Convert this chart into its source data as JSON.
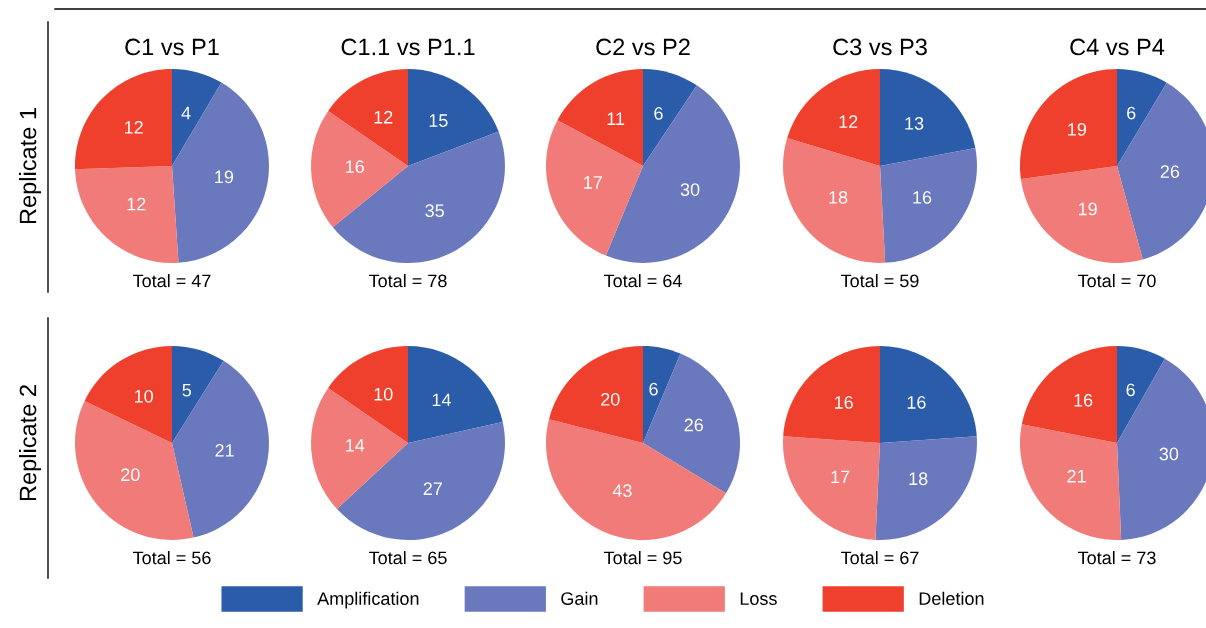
{
  "chart_data": [
    {
      "type": "pie",
      "title": "C1 vs P1",
      "ylabel": "Replicate 1",
      "categories": [
        "Amplification",
        "Gain",
        "Loss",
        "Deletion"
      ],
      "values": [
        4,
        19,
        12,
        12
      ],
      "colors": [
        "#2a5caa",
        "#6a78be",
        "#f07b78",
        "#ef402d"
      ],
      "data_labels": true,
      "annotations": [
        "Total = 47"
      ],
      "legend": "bottom"
    },
    {
      "type": "pie",
      "title": "C1.1 vs P1.1",
      "categories": [
        null,
        null,
        null,
        null
      ],
      "values": [
        15,
        35,
        16,
        12
      ],
      "colors": [
        "#2a5caa",
        "#6a78be",
        "#f07b78",
        "#ef402d"
      ],
      "data_labels": true,
      "annotations": [
        "Total = 78"
      ]
    },
    {
      "type": "pie",
      "title": "C2 vs P2",
      "categories": [
        null,
        null,
        null,
        null
      ],
      "values": [
        6,
        30,
        17,
        11
      ],
      "colors": [
        "#2a5caa",
        "#6a78be",
        "#f07b78",
        "#ef402d"
      ],
      "data_labels": true,
      "annotations": [
        "Total = 64"
      ]
    },
    {
      "type": "pie",
      "title": "C3 vs P3",
      "categories": [
        null,
        null,
        null,
        null
      ],
      "values": [
        13,
        16,
        18,
        12
      ],
      "colors": [
        "#2a5caa",
        "#6a78be",
        "#f07b78",
        "#ef402d"
      ],
      "data_labels": true,
      "annotations": [
        "Total = 59"
      ]
    },
    {
      "type": "pie",
      "title": "C4 vs P4",
      "categories": [
        null,
        null,
        null,
        null
      ],
      "values": [
        6,
        26,
        19,
        19
      ],
      "colors": [
        "#2a5caa",
        "#6a78be",
        "#f07b78",
        "#ef402d"
      ],
      "data_labels": true,
      "annotations": [
        "Total = 70"
      ]
    },
    {
      "type": "pie",
      "ylabel": "Replicate 2",
      "categories": [
        null,
        null,
        null,
        null
      ],
      "values": [
        5,
        21,
        20,
        10
      ],
      "colors": [
        "#2a5caa",
        "#6a78be",
        "#f07b78",
        "#ef402d"
      ],
      "data_labels": true,
      "annotations": [
        "Total = 56"
      ]
    },
    {
      "type": "pie",
      "categories": [
        null,
        null,
        null,
        null
      ],
      "values": [
        14,
        27,
        14,
        10
      ],
      "colors": [
        "#2a5caa",
        "#6a78be",
        "#f07b78",
        "#ef402d"
      ],
      "data_labels": true,
      "annotations": [
        "Total = 65"
      ]
    },
    {
      "type": "pie",
      "categories": [
        null,
        null,
        null,
        null
      ],
      "values": [
        6,
        26,
        43,
        20
      ],
      "colors": [
        "#2a5caa",
        "#6a78be",
        "#f07b78",
        "#ef402d"
      ],
      "data_labels": true,
      "annotations": [
        "Total = 95"
      ]
    },
    {
      "type": "pie",
      "categories": [
        null,
        null,
        null,
        null
      ],
      "values": [
        16,
        18,
        17,
        16
      ],
      "colors": [
        "#2a5caa",
        "#6a78be",
        "#f07b78",
        "#ef402d"
      ],
      "data_labels": true,
      "annotations": [
        "Total = 67"
      ]
    },
    {
      "type": "pie",
      "categories": [
        null,
        null,
        null,
        null
      ],
      "values": [
        6,
        30,
        21,
        16
      ],
      "colors": [
        "#2a5caa",
        "#6a78be",
        "#f07b78",
        "#ef402d"
      ],
      "data_labels": true,
      "annotations": [
        "Total = 73"
      ]
    }
  ]
}
